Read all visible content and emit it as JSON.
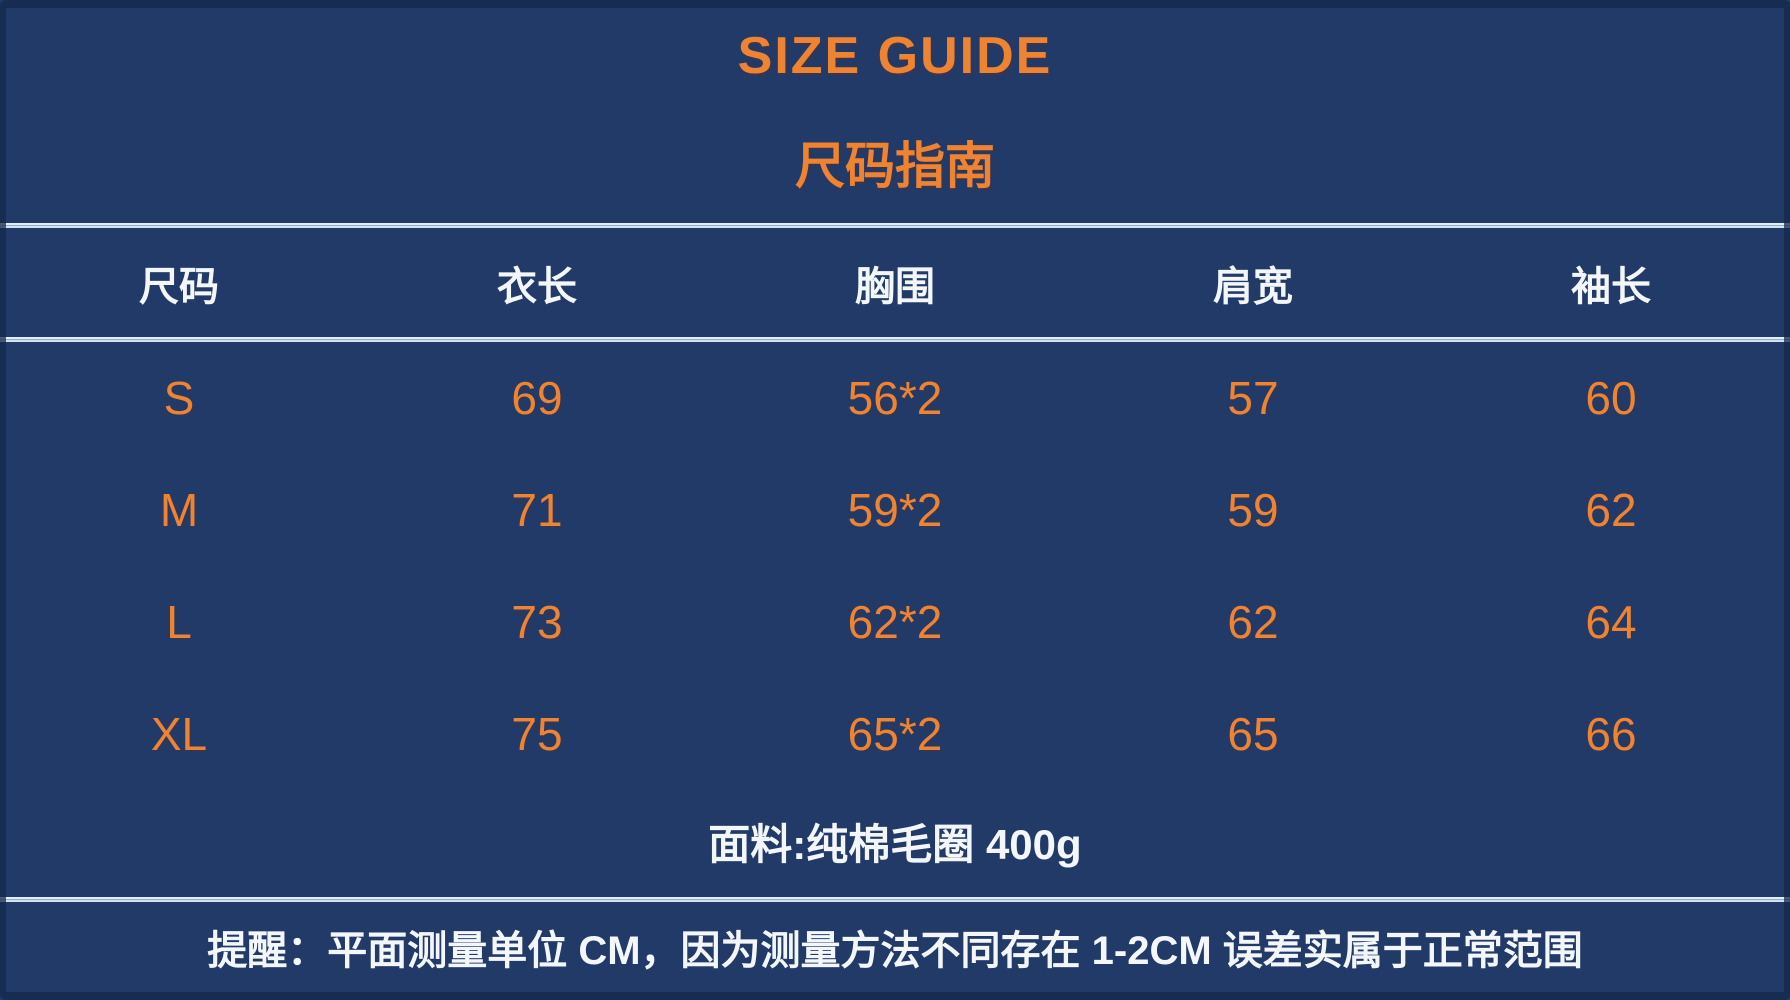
{
  "colors": {
    "background": "#223a67",
    "accent_orange": "#ee8432",
    "text_white": "#f3f7fb",
    "divider_blue": "#c2d8e8"
  },
  "chart_data": {
    "type": "table",
    "title": "SIZE GUIDE",
    "subtitle": "尺码指南",
    "columns": [
      "尺码",
      "衣长",
      "胸围",
      "肩宽",
      "袖长"
    ],
    "rows": [
      [
        "S",
        "69",
        "56*2",
        "57",
        "60"
      ],
      [
        "M",
        "71",
        "59*2",
        "59",
        "62"
      ],
      [
        "L",
        "73",
        "62*2",
        "62",
        "64"
      ],
      [
        "XL",
        "75",
        "65*2",
        "65",
        "66"
      ]
    ],
    "footnotes": [
      "面料:纯棉毛圈 400g",
      "提醒：平面测量单位 CM，因为测量方法不同存在 1-2CM 误差实属于正常范围"
    ],
    "layout_hints": {
      "columns_equal_width": true,
      "grid": "horizontal rules only (above header, below header, above disclaimer)"
    }
  }
}
